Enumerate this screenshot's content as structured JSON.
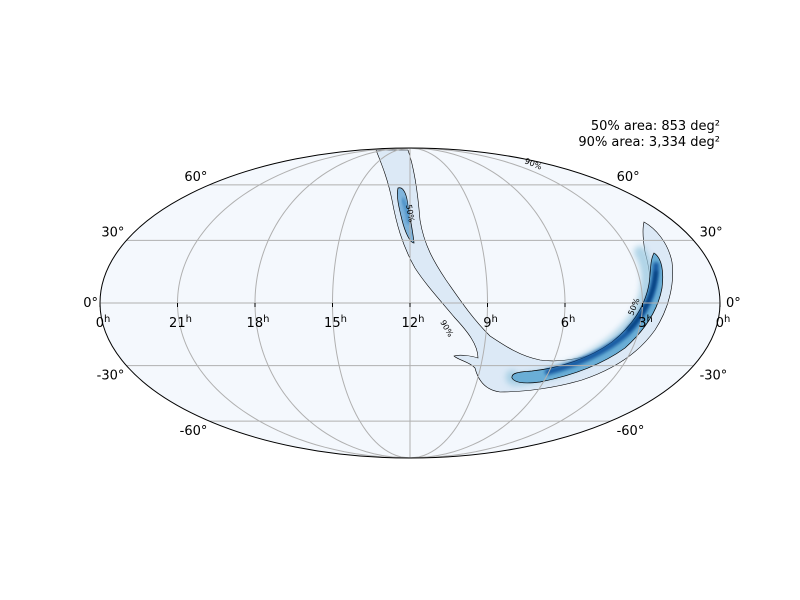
{
  "map": {
    "projection": "mollweide",
    "area_50_label": "50% area: 853 deg²",
    "area_90_label": "90% area: 3,334 deg²",
    "lat_ticks": [
      {
        "text": "60°"
      },
      {
        "text": "30°"
      },
      {
        "text": "0°"
      },
      {
        "text": "-30°"
      },
      {
        "text": "-60°"
      }
    ],
    "ra_ticks": [
      {
        "hour": "0",
        "sup": "h"
      },
      {
        "hour": "21",
        "sup": "h"
      },
      {
        "hour": "18",
        "sup": "h"
      },
      {
        "hour": "15",
        "sup": "h"
      },
      {
        "hour": "12",
        "sup": "h"
      },
      {
        "hour": "9",
        "sup": "h"
      },
      {
        "hour": "6",
        "sup": "h"
      },
      {
        "hour": "3",
        "sup": "h"
      },
      {
        "hour": "0",
        "sup": "h"
      }
    ],
    "contour_labels": [
      "50%",
      "90%",
      "50%",
      "90%",
      "50%",
      "50%"
    ],
    "colors": {
      "background": "#f4f8fd",
      "grid": "#b0b0b0",
      "outline": "#000000",
      "probability_light": "#dce9f6",
      "probability_mid": "#6aaed6",
      "probability_dark": "#08519c"
    }
  }
}
